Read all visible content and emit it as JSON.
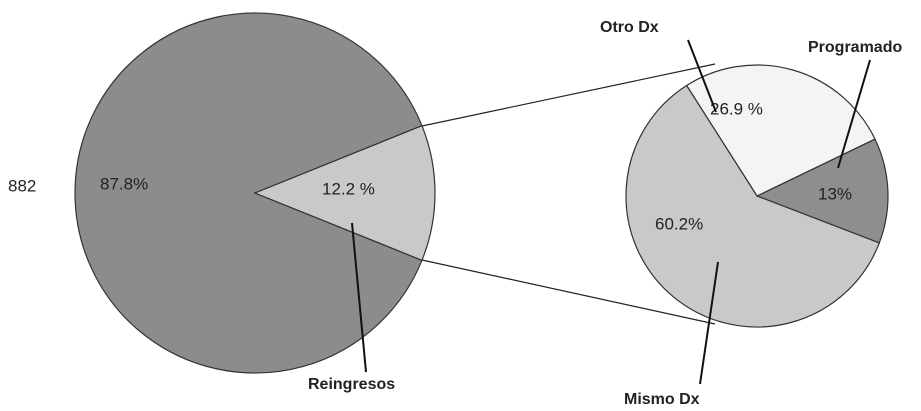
{
  "chart_data": [
    {
      "type": "pie",
      "annotation": "882",
      "categories": [
        null,
        "Reingresos"
      ],
      "values": [
        87.8,
        12.2
      ],
      "value_labels": [
        "87.8%",
        "12.2 %"
      ],
      "colors": [
        "#8c8c8c",
        "#c9c9c9"
      ]
    },
    {
      "type": "pie",
      "categories": [
        "Programado",
        "Otro Dx",
        "Mismo Dx"
      ],
      "values": [
        13,
        26.9,
        60.2
      ],
      "value_labels": [
        "13%",
        "26.9 %",
        "60.2%"
      ],
      "colors": [
        "#8e8e8e",
        "#f4f4f4",
        "#c9c9c9"
      ]
    }
  ]
}
